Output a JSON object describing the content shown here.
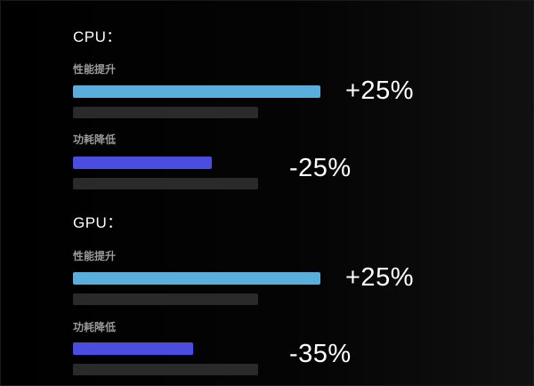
{
  "colors": {
    "boost_bar": "#5aaedb",
    "reduce_bar": "#4a4ee0",
    "track": "#2a2a2a",
    "label": "#9a9a9a"
  },
  "sections": [
    {
      "title": "CPU：",
      "metrics": [
        {
          "label": "性能提升",
          "value_text": "+25%",
          "level": 0.8
        },
        {
          "label": "功耗降低",
          "value_text": "-25%",
          "level": 0.45
        }
      ]
    },
    {
      "title": "GPU：",
      "metrics": [
        {
          "label": "性能提升",
          "value_text": "+25%",
          "level": 0.8
        },
        {
          "label": "功耗降低",
          "value_text": "-35%",
          "level": 0.39
        }
      ]
    }
  ]
}
